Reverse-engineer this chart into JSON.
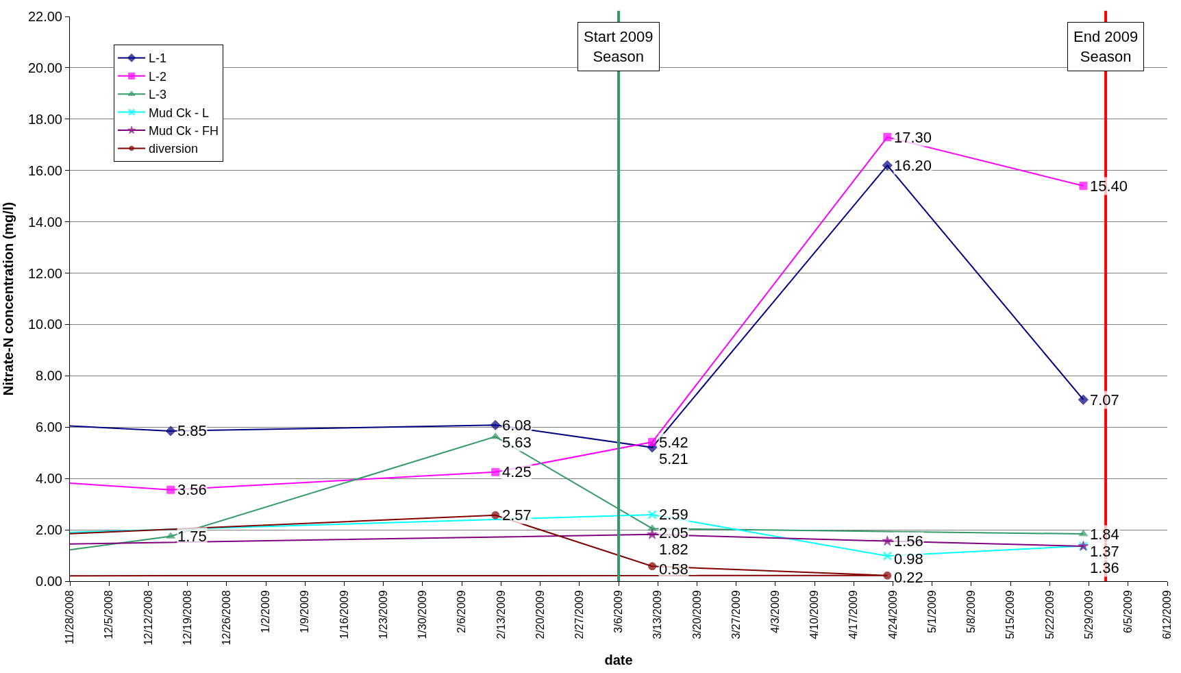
{
  "chart_data": {
    "type": "line",
    "xlabel": "date",
    "ylabel": "Nitrate-N concentration (mg/l)",
    "xlim": [
      "2008-11-28",
      "2009-06-12"
    ],
    "xticks": [
      {
        "value": "2008-11-28",
        "label": "11/28/2008"
      },
      {
        "value": "2008-12-05",
        "label": "12/5/2008"
      },
      {
        "value": "2008-12-12",
        "label": "12/12/2008"
      },
      {
        "value": "2008-12-19",
        "label": "12/19/2008"
      },
      {
        "value": "2008-12-26",
        "label": "12/26/2008"
      },
      {
        "value": "2009-01-02",
        "label": "1/2/2009"
      },
      {
        "value": "2009-01-09",
        "label": "1/9/2009"
      },
      {
        "value": "2009-01-16",
        "label": "1/16/2009"
      },
      {
        "value": "2009-01-23",
        "label": "1/23/2009"
      },
      {
        "value": "2009-01-30",
        "label": "1/30/2009"
      },
      {
        "value": "2009-02-06",
        "label": "2/6/2009"
      },
      {
        "value": "2009-02-13",
        "label": "2/13/2009"
      },
      {
        "value": "2009-02-20",
        "label": "2/20/2009"
      },
      {
        "value": "2009-02-27",
        "label": "2/27/2009"
      },
      {
        "value": "2009-03-06",
        "label": "3/6/2009"
      },
      {
        "value": "2009-03-13",
        "label": "3/13/2009"
      },
      {
        "value": "2009-03-20",
        "label": "3/20/2009"
      },
      {
        "value": "2009-03-27",
        "label": "3/27/2009"
      },
      {
        "value": "2009-04-03",
        "label": "4/3/2009"
      },
      {
        "value": "2009-04-10",
        "label": "4/10/2009"
      },
      {
        "value": "2009-04-17",
        "label": "4/17/2009"
      },
      {
        "value": "2009-04-24",
        "label": "4/24/2009"
      },
      {
        "value": "2009-05-01",
        "label": "5/1/2009"
      },
      {
        "value": "2009-05-08",
        "label": "5/8/2009"
      },
      {
        "value": "2009-05-15",
        "label": "5/15/2009"
      },
      {
        "value": "2009-05-22",
        "label": "5/22/2009"
      },
      {
        "value": "2009-05-29",
        "label": "5/29/2009"
      },
      {
        "value": "2009-06-05",
        "label": "6/5/2009"
      },
      {
        "value": "2009-06-12",
        "label": "6/12/2009"
      }
    ],
    "ylim": [
      0,
      22
    ],
    "yticks": [
      {
        "value": 0,
        "label": "0.00"
      },
      {
        "value": 2,
        "label": "2.00"
      },
      {
        "value": 4,
        "label": "4.00"
      },
      {
        "value": 6,
        "label": "6.00"
      },
      {
        "value": 8,
        "label": "8.00"
      },
      {
        "value": 10,
        "label": "10.00"
      },
      {
        "value": 12,
        "label": "12.00"
      },
      {
        "value": 14,
        "label": "14.00"
      },
      {
        "value": 16,
        "label": "16.00"
      },
      {
        "value": 18,
        "label": "18.00"
      },
      {
        "value": 20,
        "label": "20.00"
      },
      {
        "value": 22,
        "label": "22.00"
      }
    ],
    "grid": "y",
    "legend": "top left",
    "line_style": "solid",
    "series": [
      {
        "name": "L-1",
        "color": "#000080",
        "marker": "diamond",
        "x": [
          "2008-11-28",
          "2008-12-16",
          "2009-02-12",
          "2009-03-12",
          "2009-04-23",
          "2009-05-28"
        ],
        "values": [
          6.05,
          5.85,
          6.08,
          5.21,
          16.2,
          7.07
        ],
        "value_labels": [
          null,
          "5.85",
          "6.08",
          "5.21",
          "16.20",
          "7.07"
        ]
      },
      {
        "name": "L-2",
        "color": "#ff00ff",
        "marker": "square",
        "x": [
          "2008-11-28",
          "2008-12-16",
          "2009-02-12",
          "2009-03-12",
          "2009-04-23",
          "2009-05-28"
        ],
        "values": [
          3.82,
          3.56,
          4.25,
          5.42,
          17.3,
          15.4
        ],
        "value_labels": [
          null,
          "3.56",
          "4.25",
          "5.42",
          "17.30",
          "15.40"
        ]
      },
      {
        "name": "L-3",
        "color": "#339966",
        "marker": "triangle",
        "x": [
          "2008-11-28",
          "2008-12-16",
          "2009-02-12",
          "2009-03-12",
          "2009-05-28"
        ],
        "values": [
          1.22,
          1.75,
          5.63,
          2.05,
          1.84
        ],
        "value_labels": [
          null,
          "1.75",
          "5.63",
          "2.05",
          "1.84"
        ]
      },
      {
        "name": "Mud Ck - L",
        "color": "#00ffff",
        "marker": "cross",
        "x": [
          "2008-11-28",
          "2009-03-12",
          "2009-04-23",
          "2009-05-28"
        ],
        "values": [
          1.9,
          2.59,
          0.98,
          1.37
        ],
        "value_labels": [
          null,
          "2.59",
          "0.98",
          "1.37"
        ]
      },
      {
        "name": "Mud Ck - FH",
        "color": "#800080",
        "marker": "star",
        "x": [
          "2008-11-28",
          "2009-03-12",
          "2009-04-23",
          "2009-05-28"
        ],
        "values": [
          1.45,
          1.82,
          1.56,
          1.36
        ],
        "value_labels": [
          null,
          "1.82",
          "1.56",
          "1.36"
        ]
      },
      {
        "name": "diversion",
        "color": "#800000",
        "marker": "circle",
        "x": [
          "2008-11-28",
          "2009-02-12",
          "2009-03-12",
          "2009-04-23",
          "2008-11-28"
        ],
        "values": [
          1.85,
          2.57,
          0.58,
          0.22,
          0.21
        ],
        "value_labels": [
          null,
          "2.57",
          "0.58",
          "0.22",
          null
        ]
      }
    ],
    "ref_lines": [
      {
        "axis": "x",
        "value": "2009-03-06",
        "label": "Start 2009 Season",
        "color": "#339966"
      },
      {
        "axis": "x",
        "value": "2009-06-01",
        "label": "End 2009 Season",
        "color": "#ff0000"
      }
    ]
  }
}
